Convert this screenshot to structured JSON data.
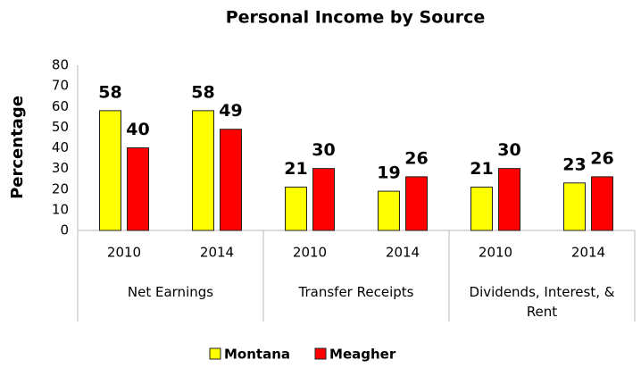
{
  "chart_data": {
    "type": "bar",
    "title": "Personal Income by Source",
    "y_label": "Percentage",
    "categories": [
      "2010",
      "2014",
      "2010",
      "2014",
      "2010",
      "2014"
    ],
    "groups": [
      "Net Earnings",
      "Transfer Receipts",
      "Dividends, Interest, & Rent"
    ],
    "series": [
      {
        "name": "Montana",
        "color": "#ffff00",
        "values": [
          58,
          58,
          21,
          19,
          21,
          23
        ]
      },
      {
        "name": "Meagher",
        "color": "#ff0000",
        "values": [
          40,
          49,
          30,
          26,
          30,
          26
        ]
      }
    ],
    "ylim": [
      0,
      80
    ],
    "yticks": [
      0,
      10,
      20,
      30,
      40,
      50,
      60,
      70,
      80
    ],
    "grid": false,
    "legend": "bottom"
  }
}
